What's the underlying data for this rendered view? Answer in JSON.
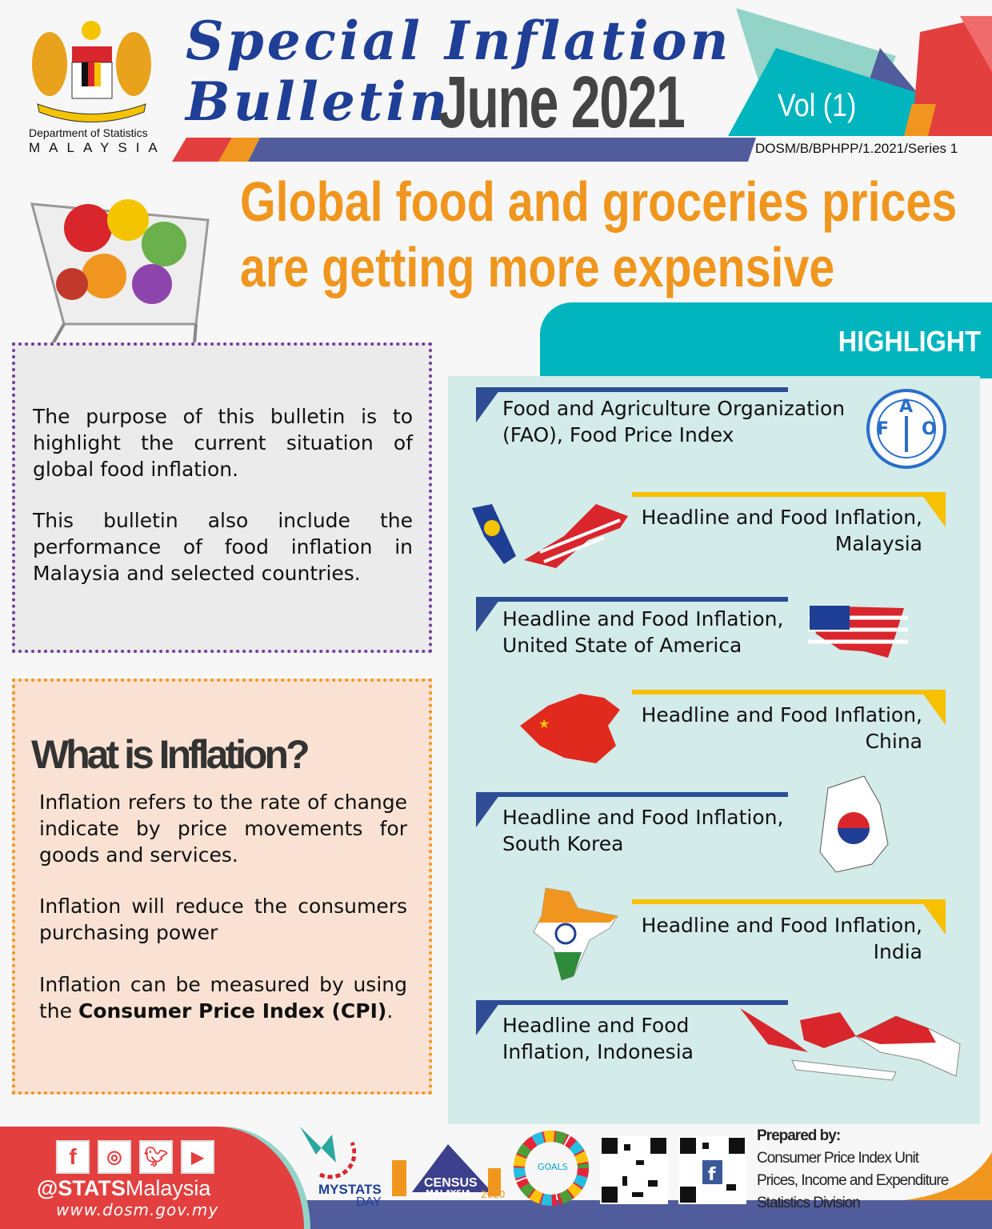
{
  "header": {
    "org_line1": "Department of Statistics",
    "org_line2": "MALAYSIA",
    "title_line1": "Special Inflation",
    "title_line2": "Bulletin",
    "issue": "June 2021",
    "volume": "Vol (1)",
    "reference": "DOSM/B/BPHPP/1.2021/Series 1"
  },
  "headline": {
    "line1": "Global food and groceries prices",
    "line2": "are getting more expensive"
  },
  "purpose": {
    "p1": "The purpose of this bulletin is to highlight the current situation of global food inflation.",
    "p2": "This bulletin also include the performance of food inflation in Malaysia and selected countries."
  },
  "inflation": {
    "heading": "What is Inflation?",
    "p1": "Inflation refers to the rate of change indicate by price movements for goods and services.",
    "p2": "Inflation will reduce the consumers purchasing power",
    "p3_prefix": "Inflation can be measured by using the ",
    "p3_bold": "Consumer Price Index (CPI)",
    "p3_suffix": "."
  },
  "highlight": {
    "title": "HIGHLIGHT",
    "items": [
      {
        "line1": "Food and Agriculture Organization",
        "line2": "(FAO), Food Price Index"
      },
      {
        "line1": "Headline and Food Inflation,",
        "line2": "Malaysia"
      },
      {
        "line1": "Headline and Food Inflation,",
        "line2": "United State of America"
      },
      {
        "line1": "Headline and Food Inflation,",
        "line2": "China"
      },
      {
        "line1": "Headline and Food Inflation,",
        "line2": "South Korea"
      },
      {
        "line1": "Headline and Food Inflation,",
        "line2": "India"
      },
      {
        "line1": "Headline and Food",
        "line2": "Inflation, Indonesia"
      }
    ],
    "fao_logo": {
      "letters": "F A O",
      "motto": "FIAT PANIS"
    }
  },
  "footer": {
    "handle_bold": "@STATS",
    "handle_rest": "Malaysia",
    "website": "www.dosm.gov.my",
    "social_icons": [
      "facebook-icon",
      "instagram-icon",
      "twitter-icon",
      "youtube-icon"
    ],
    "mystats": "MYSTATS",
    "mystats_day": "DAY",
    "census": "CENSUS",
    "census_country": "MALAYSIA",
    "census_year": "2020",
    "sdg": "GOALS",
    "prepared_label": "Prepared by:",
    "prepared_lines": [
      "Consumer Price Index Unit",
      "Prices, Income and Expenditure",
      "Statistics Division"
    ]
  },
  "colors": {
    "blue": "#1f3f96",
    "teal": "#00b5be",
    "orange": "#f0961e",
    "red": "#e43f3f",
    "indigo": "#515c9c",
    "yellow": "#f7c000"
  }
}
